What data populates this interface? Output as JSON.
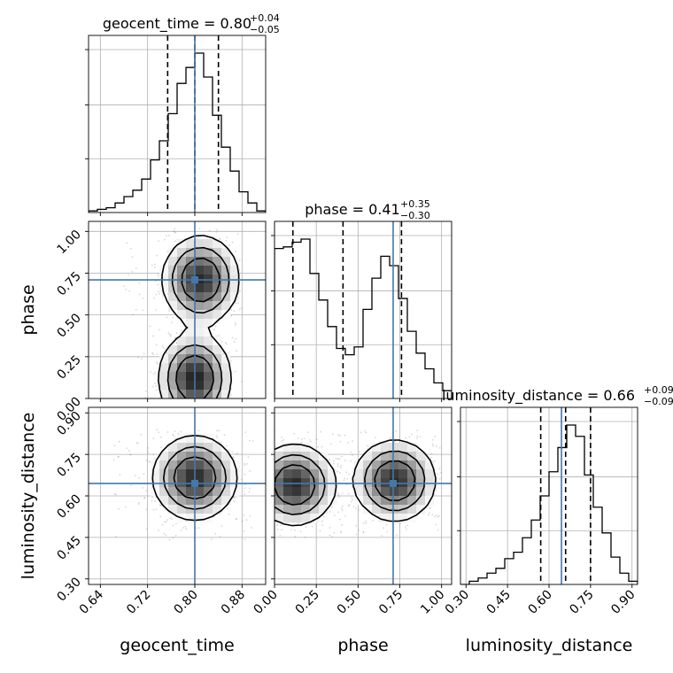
{
  "chart_data": {
    "type": "corner",
    "parameters": [
      {
        "name": "geocent_time",
        "label": "geocent_time",
        "range": [
          0.62,
          0.92
        ],
        "ticks": [
          0.64,
          0.72,
          0.8,
          0.88
        ],
        "tick_labels": [
          "0.64",
          "0.72",
          "0.80",
          "0.88"
        ],
        "truth": 0.8,
        "quantiles": [
          0.754,
          0.8,
          0.84
        ],
        "title_main": "geocent_time = 0.80",
        "title_plus": "+0.04",
        "title_minus": "−0.05",
        "hist_edges": [
          0.62,
          0.635,
          0.65,
          0.665,
          0.68,
          0.695,
          0.71,
          0.725,
          0.74,
          0.755,
          0.77,
          0.785,
          0.8,
          0.815,
          0.83,
          0.845,
          0.86,
          0.875,
          0.89,
          0.905,
          0.92
        ],
        "hist_counts": [
          0.01,
          0.02,
          0.03,
          0.06,
          0.1,
          0.14,
          0.21,
          0.33,
          0.45,
          0.62,
          0.81,
          0.91,
          1.0,
          0.85,
          0.61,
          0.41,
          0.26,
          0.13,
          0.06,
          0.01
        ]
      },
      {
        "name": "phase",
        "label": "phase",
        "range": [
          0.0,
          1.06
        ],
        "ticks": [
          0.0,
          0.25,
          0.5,
          0.75,
          1.0
        ],
        "tick_labels": [
          "0.00",
          "0.25",
          "0.50",
          "0.75",
          "1.00"
        ],
        "truth": 0.71,
        "quantiles": [
          0.11,
          0.41,
          0.76
        ],
        "title_main": "phase = 0.41",
        "title_plus": "+0.35",
        "title_minus": "−0.30",
        "hist_edges": [
          0.0,
          0.053,
          0.106,
          0.159,
          0.212,
          0.265,
          0.318,
          0.371,
          0.424,
          0.477,
          0.53,
          0.583,
          0.636,
          0.689,
          0.742,
          0.795,
          0.848,
          0.901,
          0.954,
          1.007,
          1.06
        ],
        "hist_counts": [
          0.96,
          0.97,
          1.0,
          1.02,
          0.8,
          0.63,
          0.46,
          0.32,
          0.28,
          0.33,
          0.57,
          0.77,
          0.91,
          0.85,
          0.64,
          0.43,
          0.29,
          0.19,
          0.1,
          0.05
        ]
      },
      {
        "name": "luminosity_distance",
        "label": "luminosity_distance",
        "range": [
          0.28,
          0.92
        ],
        "ticks": [
          0.3,
          0.45,
          0.6,
          0.75,
          0.9
        ],
        "tick_labels": [
          "0.30",
          "0.45",
          "0.60",
          "0.75",
          "0.90"
        ],
        "truth": 0.645,
        "quantiles": [
          0.57,
          0.66,
          0.75
        ],
        "title_main": "luminosity_distance = 0.66",
        "title_plus": "+0.09",
        "title_minus": "−0.09",
        "hist_edges": [
          0.28,
          0.312,
          0.344,
          0.376,
          0.408,
          0.44,
          0.472,
          0.504,
          0.536,
          0.568,
          0.6,
          0.632,
          0.664,
          0.696,
          0.728,
          0.76,
          0.792,
          0.824,
          0.856,
          0.888,
          0.92
        ],
        "hist_counts": [
          0.0,
          0.02,
          0.04,
          0.07,
          0.1,
          0.16,
          0.2,
          0.29,
          0.4,
          0.55,
          0.7,
          0.85,
          0.99,
          0.92,
          0.68,
          0.48,
          0.32,
          0.17,
          0.07,
          0.02
        ]
      }
    ],
    "pairs": [
      {
        "x": "geocent_time",
        "y": "phase",
        "blobs": [
          {
            "cx": 0.81,
            "cy": 0.71,
            "sx": 0.032,
            "sy": 0.13,
            "w": 1.0
          },
          {
            "cx": 0.8,
            "cy": 0.12,
            "sx": 0.03,
            "sy": 0.13,
            "w": 1.05
          }
        ],
        "bulk_x": [
          0.68,
          0.88
        ],
        "bulk_y": [
          0.0,
          1.02
        ]
      },
      {
        "x": "geocent_time",
        "y": "luminosity_distance",
        "blobs": [
          {
            "cx": 0.8,
            "cy": 0.665,
            "sx": 0.035,
            "sy": 0.075,
            "w": 1.0
          }
        ],
        "bulk_x": [
          0.66,
          0.9
        ],
        "bulk_y": [
          0.43,
          0.84
        ]
      },
      {
        "x": "phase",
        "y": "luminosity_distance",
        "blobs": [
          {
            "cx": 0.12,
            "cy": 0.64,
            "sx": 0.12,
            "sy": 0.072,
            "w": 1.0
          },
          {
            "cx": 0.72,
            "cy": 0.655,
            "sx": 0.12,
            "sy": 0.072,
            "w": 1.0
          }
        ],
        "bulk_x": [
          0.0,
          1.0
        ],
        "bulk_y": [
          0.45,
          0.84
        ]
      }
    ],
    "grid": true,
    "truth_color": "#4477aa",
    "contour_color": "#000000",
    "point_color": "#8a8a8a"
  }
}
